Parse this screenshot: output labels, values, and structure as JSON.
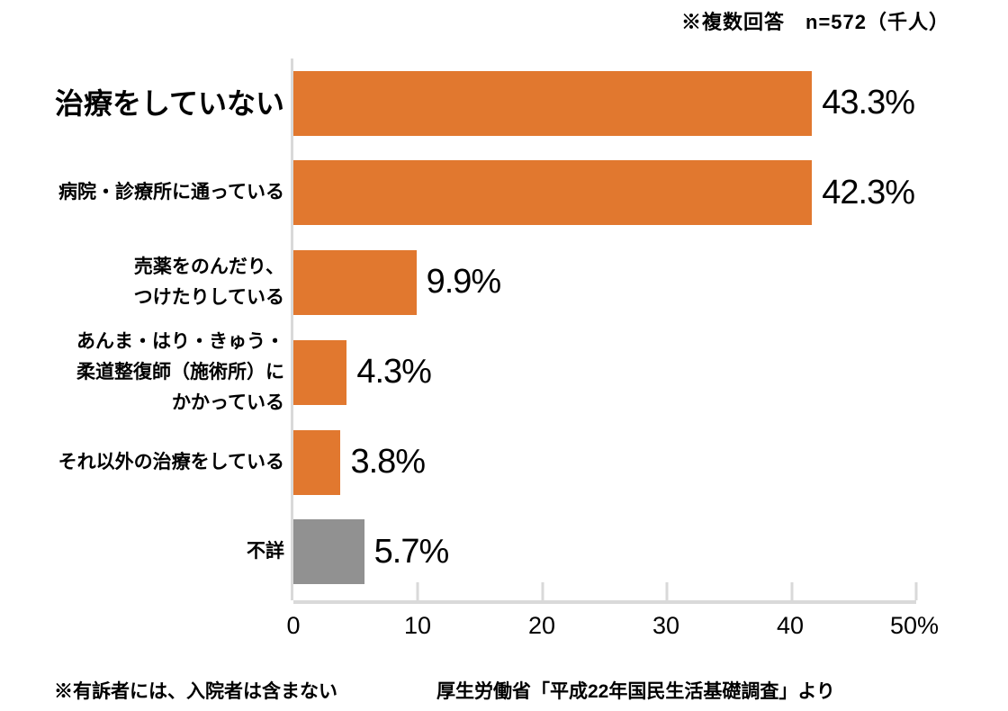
{
  "notes": {
    "top": "※複数回答　n=572（千人）",
    "bottom_left": "※有訴者には、入院者は含まない",
    "bottom_right": "厚生労働省「平成22年国民生活基礎調査」より"
  },
  "chart_data": {
    "type": "bar",
    "orientation": "horizontal",
    "title": "",
    "xlabel": "",
    "ylabel": "",
    "xlim": [
      0,
      50
    ],
    "grid": false,
    "legend": false,
    "axis_ticks": [
      "0",
      "10",
      "20",
      "30",
      "40",
      "50%"
    ],
    "categories": [
      "治療をしていない",
      "病院・診療所に通っている",
      "売薬をのんだり、つけたりしている",
      "あんま・はり・きゅう・柔道整復師（施術所）にかかっている",
      "それ以外の治療をしている",
      "不詳"
    ],
    "values": [
      43.3,
      42.3,
      9.9,
      4.3,
      3.8,
      5.7
    ],
    "rows": [
      {
        "label": "治療をしていない",
        "value": 43.3,
        "value_label": "43.3%",
        "color": "#E1782F",
        "emphasis": true
      },
      {
        "label": "病院・診療所に通っている",
        "value": 42.3,
        "value_label": "42.3%",
        "color": "#E1782F",
        "emphasis": false
      },
      {
        "label": "売薬をのんだり、\nつけたりしている",
        "value": 9.9,
        "value_label": "9.9%",
        "color": "#E1782F",
        "emphasis": false
      },
      {
        "label": "あんま・はり・きゅう・\n柔道整復師（施術所）に\nかかっている",
        "value": 4.3,
        "value_label": "4.3%",
        "color": "#E1782F",
        "emphasis": false
      },
      {
        "label": "それ以外の治療をしている",
        "value": 3.8,
        "value_label": "3.8%",
        "color": "#E1782F",
        "emphasis": false
      },
      {
        "label": "不詳",
        "value": 5.7,
        "value_label": "5.7%",
        "color": "#919191",
        "emphasis": false
      }
    ],
    "colors": {
      "bar": "#E1782F",
      "unknown_bar": "#919191",
      "axis_line": "#D9D9D9",
      "text": "#000000"
    }
  }
}
